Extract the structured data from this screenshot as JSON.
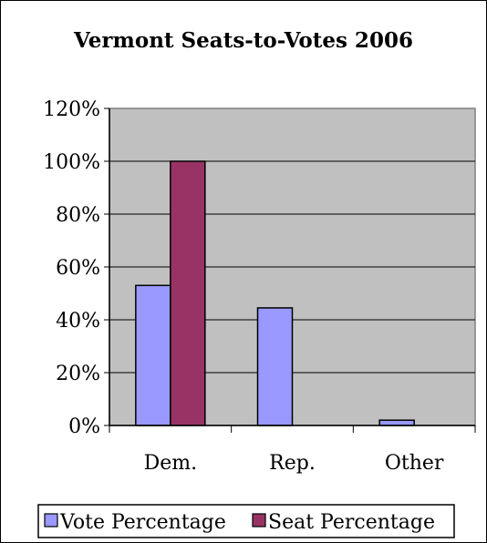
{
  "chart_data": {
    "type": "bar",
    "title": "Vermont Seats-to-Votes 2006",
    "categories": [
      "Dem.",
      "Rep.",
      "Other"
    ],
    "series": [
      {
        "name": "Vote Percentage",
        "values": [
          53,
          44.5,
          2
        ],
        "color": "#9999ff"
      },
      {
        "name": "Seat Percentage",
        "values": [
          100,
          0,
          0
        ],
        "color": "#993366"
      }
    ],
    "y_ticks": [
      "0%",
      "20%",
      "40%",
      "60%",
      "80%",
      "100%",
      "120%"
    ],
    "ylim": [
      0,
      120
    ],
    "grid": true,
    "plot_background": "#c0c0c0",
    "legend_position": "bottom"
  }
}
